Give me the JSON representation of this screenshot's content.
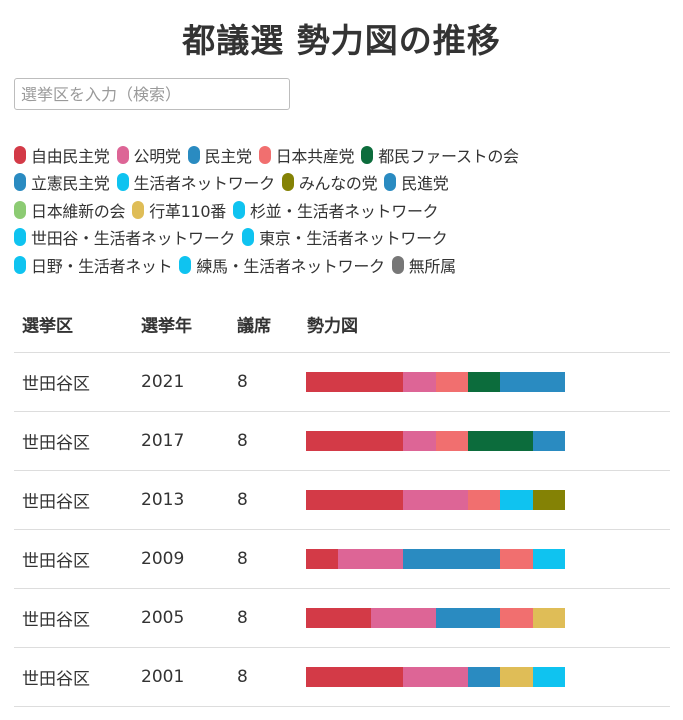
{
  "title": "都議選 勢力図の推移",
  "search": {
    "placeholder": "選挙区を入力（検索）"
  },
  "legend": [
    [
      {
        "label": "自由民主党",
        "color": "#d33a47"
      },
      {
        "label": "公明党",
        "color": "#dd6596"
      },
      {
        "label": "民主党",
        "color": "#2a8bc1"
      },
      {
        "label": "日本共産党",
        "color": "#f16f6f"
      },
      {
        "label": "都民ファーストの会",
        "color": "#0c6c3c"
      }
    ],
    [
      {
        "label": "立憲民主党",
        "color": "#2a8bc1"
      },
      {
        "label": "生活者ネットワーク",
        "color": "#0fc3f0"
      },
      {
        "label": "みんなの党",
        "color": "#848205"
      },
      {
        "label": "民進党",
        "color": "#2a8bc1"
      }
    ],
    [
      {
        "label": "日本維新の会",
        "color": "#8ccb73"
      },
      {
        "label": "行革110番",
        "color": "#dfbd57"
      },
      {
        "label": "杉並・生活者ネットワーク",
        "color": "#0fc3f0"
      }
    ],
    [
      {
        "label": "世田谷・生活者ネットワーク",
        "color": "#0fc3f0"
      },
      {
        "label": "東京・生活者ネットワーク",
        "color": "#0fc3f0"
      }
    ],
    [
      {
        "label": "日野・生活者ネット",
        "color": "#0fc3f0"
      },
      {
        "label": "練馬・生活者ネットワーク",
        "color": "#0fc3f0"
      },
      {
        "label": "無所属",
        "color": "#777777"
      }
    ]
  ],
  "table": {
    "headers": [
      "選挙区",
      "選挙年",
      "議席",
      "勢力図"
    ],
    "rows": [
      {
        "district": "世田谷区",
        "year": "2021",
        "seats": "8",
        "segments": [
          {
            "seats": 3,
            "color": "#d33a47"
          },
          {
            "seats": 1,
            "color": "#dd6596"
          },
          {
            "seats": 1,
            "color": "#f16f6f"
          },
          {
            "seats": 1,
            "color": "#0c6c3c"
          },
          {
            "seats": 2,
            "color": "#2a8bc1"
          }
        ]
      },
      {
        "district": "世田谷区",
        "year": "2017",
        "seats": "8",
        "segments": [
          {
            "seats": 3,
            "color": "#d33a47"
          },
          {
            "seats": 1,
            "color": "#dd6596"
          },
          {
            "seats": 1,
            "color": "#f16f6f"
          },
          {
            "seats": 2,
            "color": "#0c6c3c"
          },
          {
            "seats": 1,
            "color": "#2a8bc1"
          }
        ]
      },
      {
        "district": "世田谷区",
        "year": "2013",
        "seats": "8",
        "segments": [
          {
            "seats": 3,
            "color": "#d33a47"
          },
          {
            "seats": 2,
            "color": "#dd6596"
          },
          {
            "seats": 1,
            "color": "#f16f6f"
          },
          {
            "seats": 1,
            "color": "#0fc3f0"
          },
          {
            "seats": 1,
            "color": "#848205"
          }
        ]
      },
      {
        "district": "世田谷区",
        "year": "2009",
        "seats": "8",
        "segments": [
          {
            "seats": 1,
            "color": "#d33a47"
          },
          {
            "seats": 2,
            "color": "#dd6596"
          },
          {
            "seats": 3,
            "color": "#2a8bc1"
          },
          {
            "seats": 1,
            "color": "#f16f6f"
          },
          {
            "seats": 1,
            "color": "#0fc3f0"
          }
        ]
      },
      {
        "district": "世田谷区",
        "year": "2005",
        "seats": "8",
        "segments": [
          {
            "seats": 2,
            "color": "#d33a47"
          },
          {
            "seats": 2,
            "color": "#dd6596"
          },
          {
            "seats": 2,
            "color": "#2a8bc1"
          },
          {
            "seats": 1,
            "color": "#f16f6f"
          },
          {
            "seats": 1,
            "color": "#dfbd57"
          }
        ]
      },
      {
        "district": "世田谷区",
        "year": "2001",
        "seats": "8",
        "segments": [
          {
            "seats": 3,
            "color": "#d33a47"
          },
          {
            "seats": 2,
            "color": "#dd6596"
          },
          {
            "seats": 1,
            "color": "#2a8bc1"
          },
          {
            "seats": 1,
            "color": "#dfbd57"
          },
          {
            "seats": 1,
            "color": "#0fc3f0"
          }
        ]
      }
    ]
  }
}
